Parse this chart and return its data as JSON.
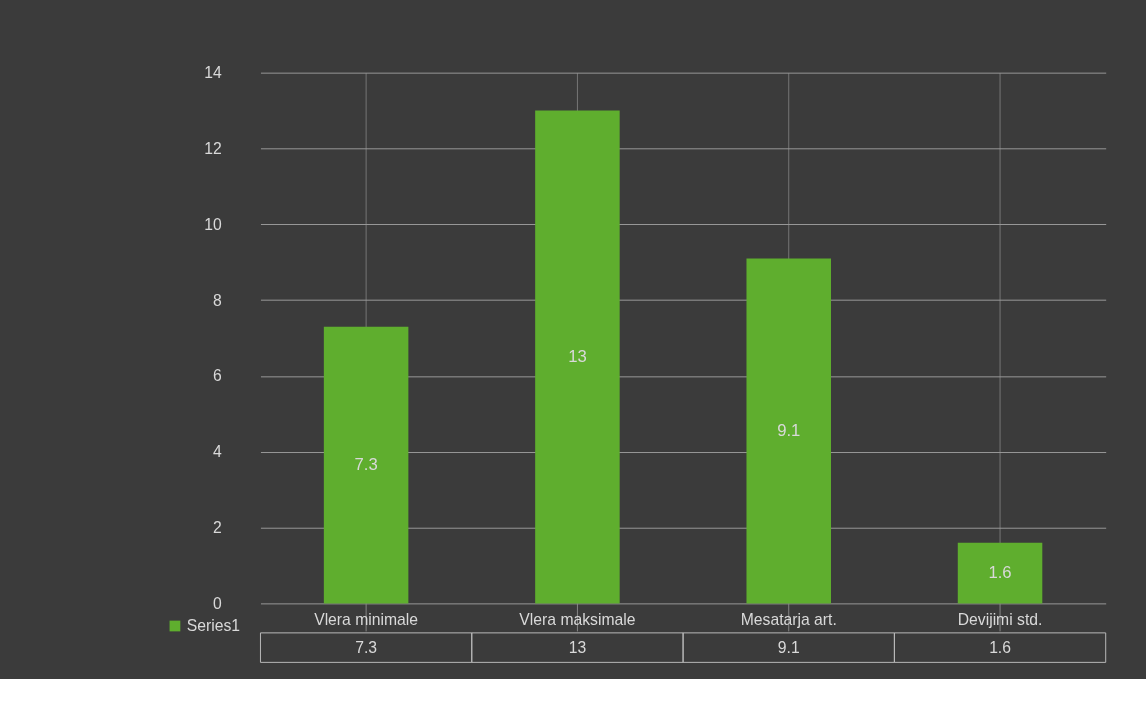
{
  "chart_data": {
    "type": "bar",
    "categories": [
      "Vlera minimale",
      "Vlera maksimale",
      "Mesatarja art.",
      "Devijimi std."
    ],
    "series": [
      {
        "name": "Series1",
        "color": "#5fae2e",
        "values": [
          7.3,
          13,
          9.1,
          1.6
        ],
        "value_labels": [
          "7.3",
          "13",
          "9.1",
          "1.6"
        ]
      }
    ],
    "ylim": [
      0,
      14
    ],
    "yticks": [
      0,
      2,
      4,
      6,
      8,
      10,
      12,
      14
    ],
    "annotations": [
      "7.3",
      "13",
      "9.1",
      "1.6"
    ],
    "grid": true,
    "data_labels": true,
    "legend": "bottom"
  }
}
